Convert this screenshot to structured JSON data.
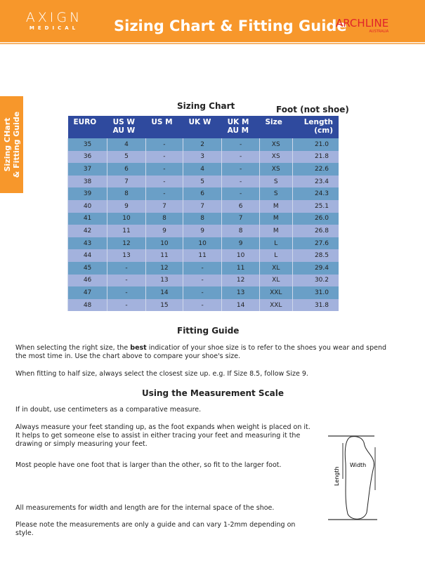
{
  "header": {
    "brand_left": "AXIGN",
    "brand_left_sub": "MEDICAL",
    "title": "Sizing Chart & Fitting Guide",
    "brand_right": "ARCHLINE",
    "brand_right_sub": "AUSTRALIA"
  },
  "side_tab": {
    "line1": "Sizing CHart",
    "line2": "& Fitting Guide"
  },
  "chart": {
    "title": "Sizing Chart",
    "note": "Foot (not shoe)",
    "headers": [
      "EURO",
      "US W\nAU W",
      "US M",
      "UK W",
      "UK M\nAU M",
      "Size",
      "Length\n(cm)"
    ],
    "rows": [
      [
        "35",
        "4",
        "-",
        "2",
        "-",
        "XS",
        "21.0"
      ],
      [
        "36",
        "5",
        "-",
        "3",
        "-",
        "XS",
        "21.8"
      ],
      [
        "37",
        "6",
        "-",
        "4",
        "-",
        "XS",
        "22.6"
      ],
      [
        "38",
        "7",
        "-",
        "5",
        "-",
        "S",
        "23.4"
      ],
      [
        "39",
        "8",
        "-",
        "6",
        "-",
        "S",
        "24.3"
      ],
      [
        "40",
        "9",
        "7",
        "7",
        "6",
        "M",
        "25.1"
      ],
      [
        "41",
        "10",
        "8",
        "8",
        "7",
        "M",
        "26.0"
      ],
      [
        "42",
        "11",
        "9",
        "9",
        "8",
        "M",
        "26.8"
      ],
      [
        "43",
        "12",
        "10",
        "10",
        "9",
        "L",
        "27.6"
      ],
      [
        "44",
        "13",
        "11",
        "11",
        "10",
        "L",
        "28.5"
      ],
      [
        "45",
        "-",
        "12",
        "-",
        "11",
        "XL",
        "29.4"
      ],
      [
        "46",
        "-",
        "13",
        "-",
        "12",
        "XL",
        "30.2"
      ],
      [
        "47",
        "-",
        "14",
        "-",
        "13",
        "XXL",
        "31.0"
      ],
      [
        "48",
        "-",
        "15",
        "-",
        "14",
        "XXL",
        "31.8"
      ]
    ]
  },
  "fitting": {
    "title": "Fitting Guide",
    "p1_pre": "When selecting the right size, the ",
    "p1_bold": "best",
    "p1_post": " indicatior of your shoe size is to refer to the shoes you wear and spend the most time in. Use the chart above to compare your shoe's size.",
    "p2": "When fitting to half size, always select the closest size up. e.g. If Size 8.5, follow Size 9."
  },
  "measure": {
    "title": "Using the Measurement Scale",
    "p1": "If in doubt, use centimeters as a comparative measure.",
    "p2": "Always measure your feet standing up, as the foot expands when weight is placed on it. It helps to get someone else to assist in either tracing your feet and measuring it the drawing or simply measuring your feet.",
    "p3": "Most people have one foot that is larger than the other, so fit to the larger foot.",
    "p4": "All measurements for width and length are for the internal space of the shoe.",
    "p5": "Please note the measurements are only a guide and can vary 1-2mm depending on style.",
    "diagram_width": "Width",
    "diagram_length": "Length"
  }
}
